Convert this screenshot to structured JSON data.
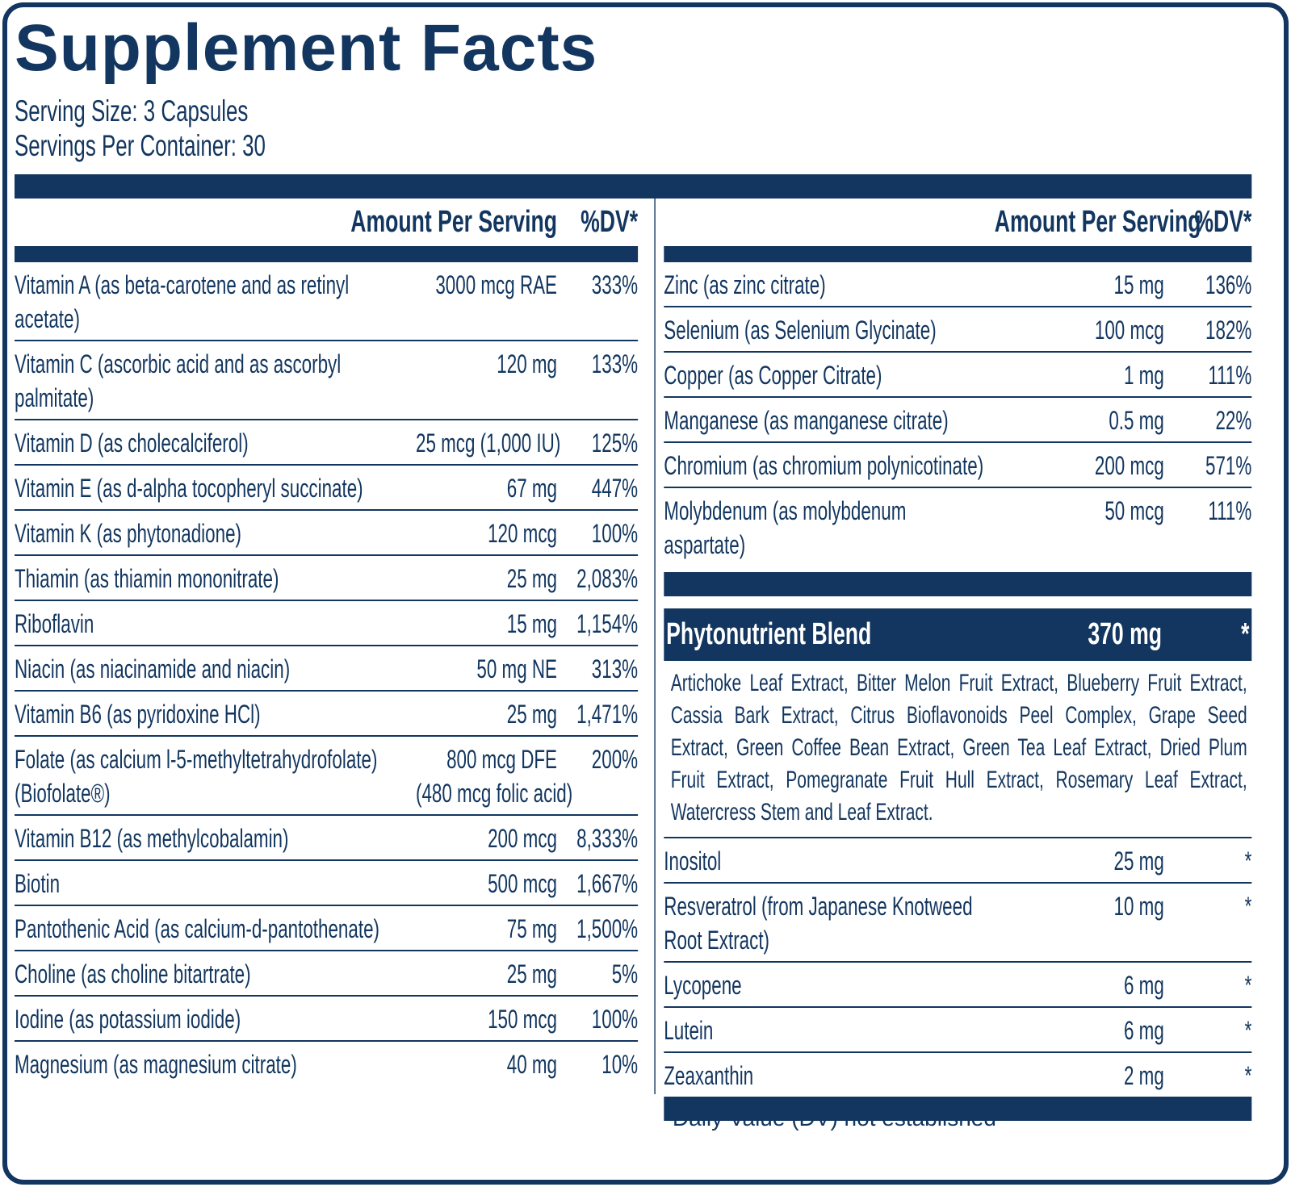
{
  "title": "Supplement Facts",
  "serving_size": "Serving Size: 3 Capsules",
  "servings_per_container": "Servings Per Container: 30",
  "left": {
    "header": {
      "amount": "Amount Per Serving",
      "dv": "%DV*"
    },
    "rows": [
      {
        "name": "Vitamin A (as beta-carotene and as retinyl acetate)",
        "amount": "3000 mcg RAE",
        "dv": "333%"
      },
      {
        "name": "Vitamin C (ascorbic acid and as ascorbyl palmitate)",
        "amount": "120 mg",
        "dv": "133%"
      },
      {
        "name": "Vitamin D (as cholecalciferol)",
        "amount": "25 mcg (1,000 IU)",
        "dv": "125%"
      },
      {
        "name": "Vitamin E (as d-alpha tocopheryl succinate)",
        "amount": "67 mg",
        "dv": "447%"
      },
      {
        "name": "Vitamin K (as phytonadione)",
        "amount": "120 mcg",
        "dv": "100%"
      },
      {
        "name": "Thiamin (as thiamin mononitrate)",
        "amount": "25 mg",
        "dv": "2,083%"
      },
      {
        "name": "Riboflavin",
        "amount": "15 mg",
        "dv": "1,154%"
      },
      {
        "name": "Niacin (as niacinamide and niacin)",
        "amount": "50 mg NE",
        "dv": "313%"
      },
      {
        "name": "Vitamin B6 (as pyridoxine HCl)",
        "amount": "25 mg",
        "dv": "1,471%"
      },
      {
        "name": "Folate (as calcium l-5-methyltetrahydrofolate) (Biofolate®)",
        "amount": [
          "800 mcg DFE",
          "(480 mcg folic acid)"
        ],
        "dv": "200%"
      },
      {
        "name": "Vitamin B12 (as methylcobalamin)",
        "amount": "200 mcg",
        "dv": "8,333%"
      },
      {
        "name": "Biotin",
        "amount": "500 mcg",
        "dv": "1,667%"
      },
      {
        "name": "Pantothenic Acid (as calcium-d-pantothenate)",
        "amount": "75 mg",
        "dv": "1,500%"
      },
      {
        "name": "Choline (as choline bitartrate)",
        "amount": "25 mg",
        "dv": "5%"
      },
      {
        "name": "Iodine (as potassium iodide)",
        "amount": "150 mcg",
        "dv": "100%"
      },
      {
        "name": "Magnesium (as magnesium citrate)",
        "amount": "40 mg",
        "dv": "10%"
      }
    ]
  },
  "right": {
    "header": {
      "amount": "Amount Per Serving",
      "dv": "%DV*"
    },
    "rows": [
      {
        "name": "Zinc (as zinc citrate)",
        "amount": "15 mg",
        "dv": "136%"
      },
      {
        "name": "Selenium (as Selenium Glycinate)",
        "amount": "100 mcg",
        "dv": "182%"
      },
      {
        "name": "Copper (as Copper Citrate)",
        "amount": "1 mg",
        "dv": "111%"
      },
      {
        "name": "Manganese (as manganese citrate)",
        "amount": "0.5 mg",
        "dv": "22%"
      },
      {
        "name": "Chromium (as chromium polynicotinate)",
        "amount": "200 mcg",
        "dv": "571%"
      },
      {
        "name": "Molybdenum (as molybdenum aspartate)",
        "amount": "50 mcg",
        "dv": "111%"
      }
    ],
    "blend": {
      "name": "Phytonutrient Blend",
      "amount": "370 mg",
      "dv": "*",
      "ingredients": "Artichoke Leaf Extract, Bitter Melon Fruit Extract, Blueberry Fruit Extract, Cassia Bark Extract, Citrus Bioflavonoids Peel Complex, Grape Seed Extract, Green Coffee Bean Extract, Green Tea Leaf Extract, Dried Plum Fruit Extract, Pomegranate Fruit Hull Extract, Rosemary Leaf Extract, Watercress Stem and Leaf Extract."
    },
    "blend_rows": [
      {
        "name": "Inositol",
        "amount": "25 mg",
        "dv": "*"
      },
      {
        "name": "Resveratrol (from Japanese Knotweed Root Extract)",
        "amount": "10 mg",
        "dv": "*"
      },
      {
        "name": "Lycopene",
        "amount": "6 mg",
        "dv": "*"
      },
      {
        "name": "Lutein",
        "amount": "6 mg",
        "dv": "*"
      },
      {
        "name": "Zeaxanthin",
        "amount": "2 mg",
        "dv": "*"
      }
    ]
  },
  "footnote": "*Daily Value (DV) not established"
}
